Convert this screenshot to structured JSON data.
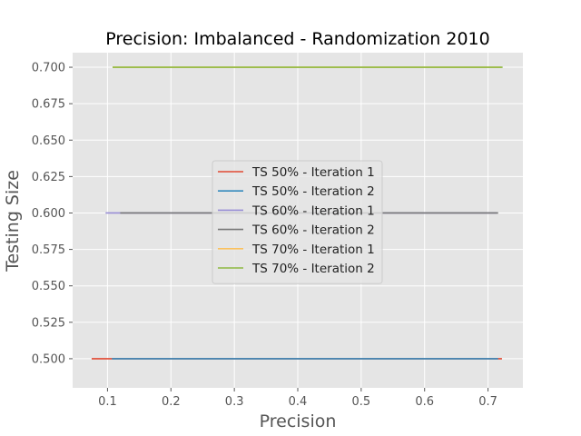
{
  "chart_data": {
    "type": "line",
    "title": "Precision: Imbalanced - Randomization 2010",
    "xlabel": "Precision",
    "ylabel": "Testing Size",
    "xlim": [
      0.045,
      0.755
    ],
    "ylim": [
      0.48,
      0.71
    ],
    "xticks": [
      0.1,
      0.2,
      0.3,
      0.4,
      0.5,
      0.6,
      0.7
    ],
    "xtick_labels": [
      "0.1",
      "0.2",
      "0.3",
      "0.4",
      "0.5",
      "0.6",
      "0.7"
    ],
    "yticks": [
      0.5,
      0.525,
      0.55,
      0.575,
      0.6,
      0.625,
      0.65,
      0.675,
      0.7
    ],
    "ytick_labels": [
      "0.500",
      "0.525",
      "0.550",
      "0.575",
      "0.600",
      "0.625",
      "0.650",
      "0.675",
      "0.700"
    ],
    "grid": true,
    "legend_position": "center",
    "background": "#e5e5e5",
    "series": [
      {
        "name": "TS 50% - Iteration 1",
        "color": "#e24a33",
        "x": [
          0.075,
          0.722
        ],
        "y": [
          0.5,
          0.5
        ]
      },
      {
        "name": "TS 50% - Iteration 2",
        "color": "#348abd",
        "x": [
          0.107,
          0.716
        ],
        "y": [
          0.5,
          0.5
        ]
      },
      {
        "name": "TS 60% - Iteration 1",
        "color": "#988ed5",
        "x": [
          0.097,
          0.714
        ],
        "y": [
          0.6,
          0.6
        ]
      },
      {
        "name": "TS 60% - Iteration 2",
        "color": "#777777",
        "x": [
          0.12,
          0.716
        ],
        "y": [
          0.6,
          0.6
        ]
      },
      {
        "name": "TS 70% - Iteration 1",
        "color": "#fbc15e",
        "x": [
          0.108,
          0.721
        ],
        "y": [
          0.7,
          0.7
        ]
      },
      {
        "name": "TS 70% - Iteration 2",
        "color": "#8eba42",
        "x": [
          0.108,
          0.723
        ],
        "y": [
          0.7,
          0.7
        ]
      }
    ]
  }
}
